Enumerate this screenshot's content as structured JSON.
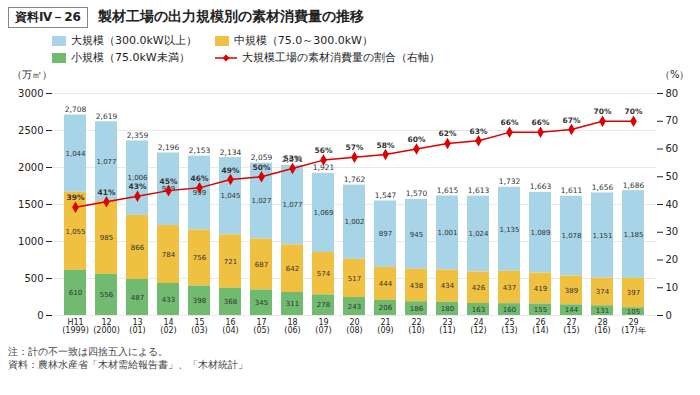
{
  "chart_data": {
    "type": "bar",
    "stacked": true,
    "title": "製材工場の出力規模別の素材消費量の推移",
    "badge": "資料Ⅳ－26",
    "notes": [
      "注：計の不一致は四捨五入による。",
      "資料：農林水産省「木材需給報告書」、「木材統計」"
    ],
    "ylabel": "（万㎥）",
    "y2label": "（%）",
    "categories": [
      "H11\n(1999)",
      "12\n(2000)",
      "13\n(01)",
      "14\n(02)",
      "15\n(03)",
      "16\n(04)",
      "17\n(05)",
      "18\n(06)",
      "19\n(07)",
      "20\n(08)",
      "21\n(09)",
      "22\n(10)",
      "23\n(11)",
      "24\n(12)",
      "25\n(13)",
      "26\n(14)",
      "27\n(15)",
      "28\n(16)",
      "29\n(17)年"
    ],
    "series": [
      {
        "name": "大規模（300.0kW以上）",
        "type": "bar",
        "color": "#a8d4e8",
        "values": [
          1044,
          1077,
          1006,
          979,
          999,
          1045,
          1027,
          1077,
          1069,
          1002,
          897,
          945,
          1001,
          1024,
          1135,
          1089,
          1078,
          1151,
          1185
        ],
        "value_labels": [
          "1,044",
          "1,077",
          "1,006",
          "979",
          "999",
          "1,045",
          "1,027",
          "1,077",
          "1,069",
          "1,002",
          "897",
          "945",
          "1,001",
          "1,024",
          "1,135",
          "1,089",
          "1,078",
          "1,151",
          "1,185"
        ]
      },
      {
        "name": "中規模（75.0～300.0kW）",
        "type": "bar",
        "color": "#f0c040",
        "values": [
          1055,
          985,
          866,
          784,
          756,
          721,
          687,
          642,
          574,
          517,
          444,
          438,
          434,
          426,
          437,
          419,
          389,
          374,
          397
        ],
        "value_labels": [
          "1,055",
          "985",
          "866",
          "784",
          "756",
          "721",
          "687",
          "642",
          "574",
          "517",
          "444",
          "438",
          "434",
          "426",
          "437",
          "419",
          "389",
          "374",
          "397"
        ]
      },
      {
        "name": "小規模（75.0kW未満）",
        "type": "bar",
        "color": "#70bb70",
        "values": [
          610,
          556,
          487,
          433,
          398,
          368,
          345,
          311,
          278,
          243,
          206,
          186,
          180,
          163,
          160,
          155,
          144,
          131,
          105
        ]
      },
      {
        "name": "大規模工場の素材消費量の割合（右軸）",
        "type": "line",
        "axis": "y2",
        "color": "#dd0000",
        "marker": "diamond",
        "line_style": "solid",
        "values": [
          39,
          41,
          43,
          45,
          46,
          49,
          50,
          53,
          56,
          57,
          58,
          60,
          62,
          63,
          66,
          66,
          67,
          70,
          70
        ],
        "value_labels": [
          "39%",
          "41%",
          "43%",
          "45%",
          "46%",
          "49%",
          "50%",
          "53%",
          "56%",
          "57%",
          "58%",
          "60%",
          "62%",
          "63%",
          "66%",
          "66%",
          "67%",
          "70%",
          "70%"
        ]
      }
    ],
    "totals": [
      2708,
      2619,
      2359,
      2196,
      2153,
      2134,
      2059,
      2031,
      1921,
      1762,
      1547,
      1570,
      1615,
      1613,
      1732,
      1663,
      1611,
      1656,
      1686
    ],
    "total_labels": [
      "2,708",
      "2,619",
      "2,359",
      "2,196",
      "2,153",
      "2,134",
      "2,059",
      "2,031",
      "1,921",
      "1,762",
      "1,547",
      "1,570",
      "1,615",
      "1,613",
      "1,732",
      "1,663",
      "1,611",
      "1,656",
      "1,686"
    ],
    "ylim": [
      0,
      3000
    ],
    "yticks": [
      0,
      500,
      1000,
      1500,
      2000,
      2500,
      3000
    ],
    "y2lim": [
      0,
      80
    ],
    "y2ticks": [
      0,
      10,
      20,
      30,
      40,
      50,
      60,
      70,
      80
    ],
    "grid": true,
    "legend": "upper left",
    "data_labels": true
  }
}
